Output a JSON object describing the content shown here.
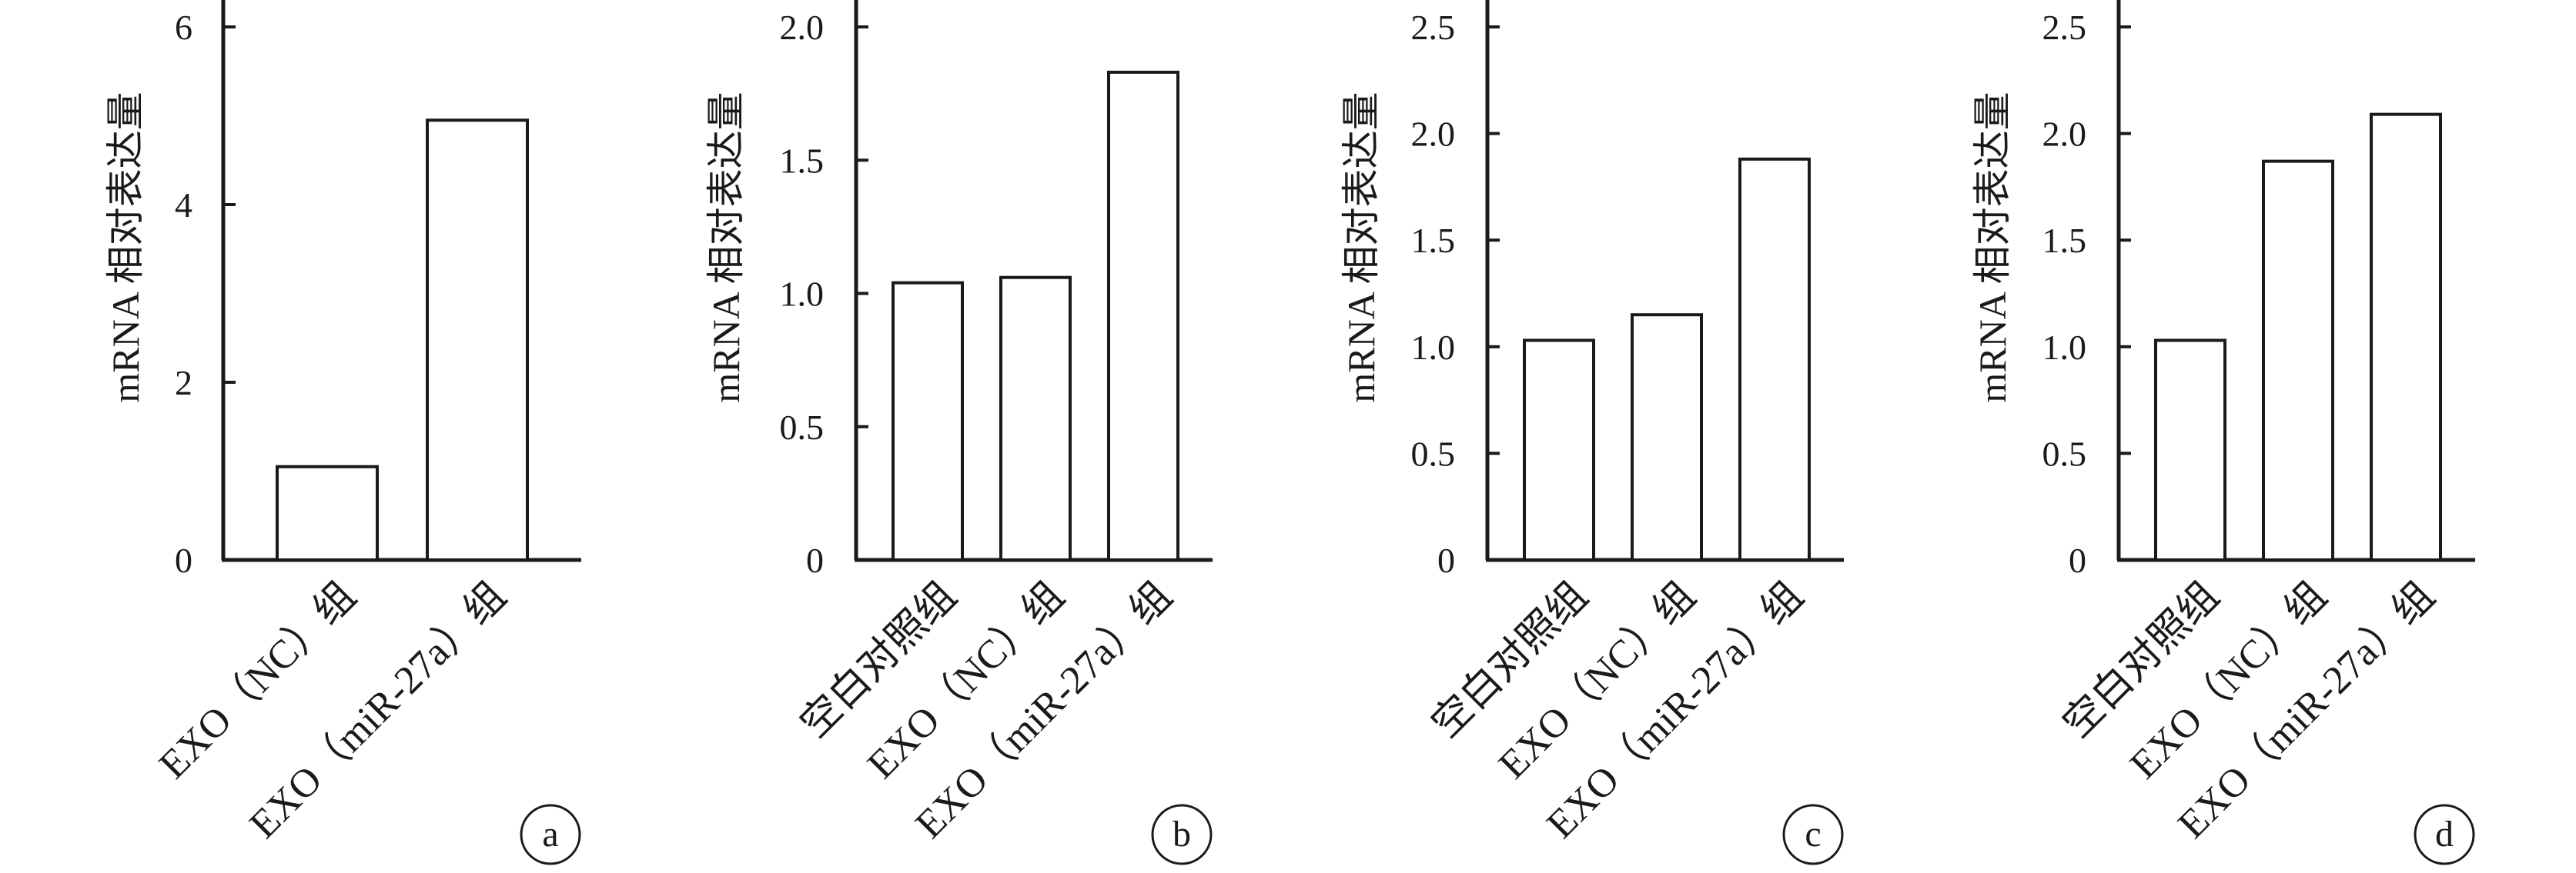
{
  "chart_data": [
    {
      "panel": "a",
      "type": "bar",
      "categories": [
        "EXO（NC）组",
        "EXO（miR-27a）组"
      ],
      "values": [
        1.05,
        4.95
      ],
      "ylabel": "mRNA 相对表达量",
      "ylim": [
        0,
        6
      ],
      "yticks": [
        "0",
        "2",
        "4",
        "6"
      ],
      "grid": false
    },
    {
      "panel": "b",
      "type": "bar",
      "categories": [
        "空白对照组",
        "EXO（NC）组",
        "EXO（miR-27a）组"
      ],
      "values": [
        1.04,
        1.06,
        1.83
      ],
      "ylabel": "mRNA 相对表达量",
      "ylim": [
        0,
        2.0
      ],
      "yticks": [
        "0",
        "0.5",
        "1.0",
        "1.5",
        "2.0"
      ],
      "grid": false
    },
    {
      "panel": "c",
      "type": "bar",
      "categories": [
        "空白对照组",
        "EXO（NC）组",
        "EXO（miR-27a）组"
      ],
      "values": [
        1.03,
        1.15,
        1.88
      ],
      "ylabel": "mRNA 相对表达量",
      "ylim": [
        0,
        2.5
      ],
      "yticks": [
        "0",
        "0.5",
        "1.0",
        "1.5",
        "2.0",
        "2.5"
      ],
      "grid": false
    },
    {
      "panel": "d",
      "type": "bar",
      "categories": [
        "空白对照组",
        "EXO（NC）组",
        "EXO（miR-27a）组"
      ],
      "values": [
        1.03,
        1.87,
        2.09
      ],
      "ylabel": "mRNA 相对表达量",
      "ylim": [
        0,
        2.5
      ],
      "yticks": [
        "0",
        "0.5",
        "1.0",
        "1.5",
        "2.0",
        "2.5"
      ],
      "grid": false
    }
  ]
}
